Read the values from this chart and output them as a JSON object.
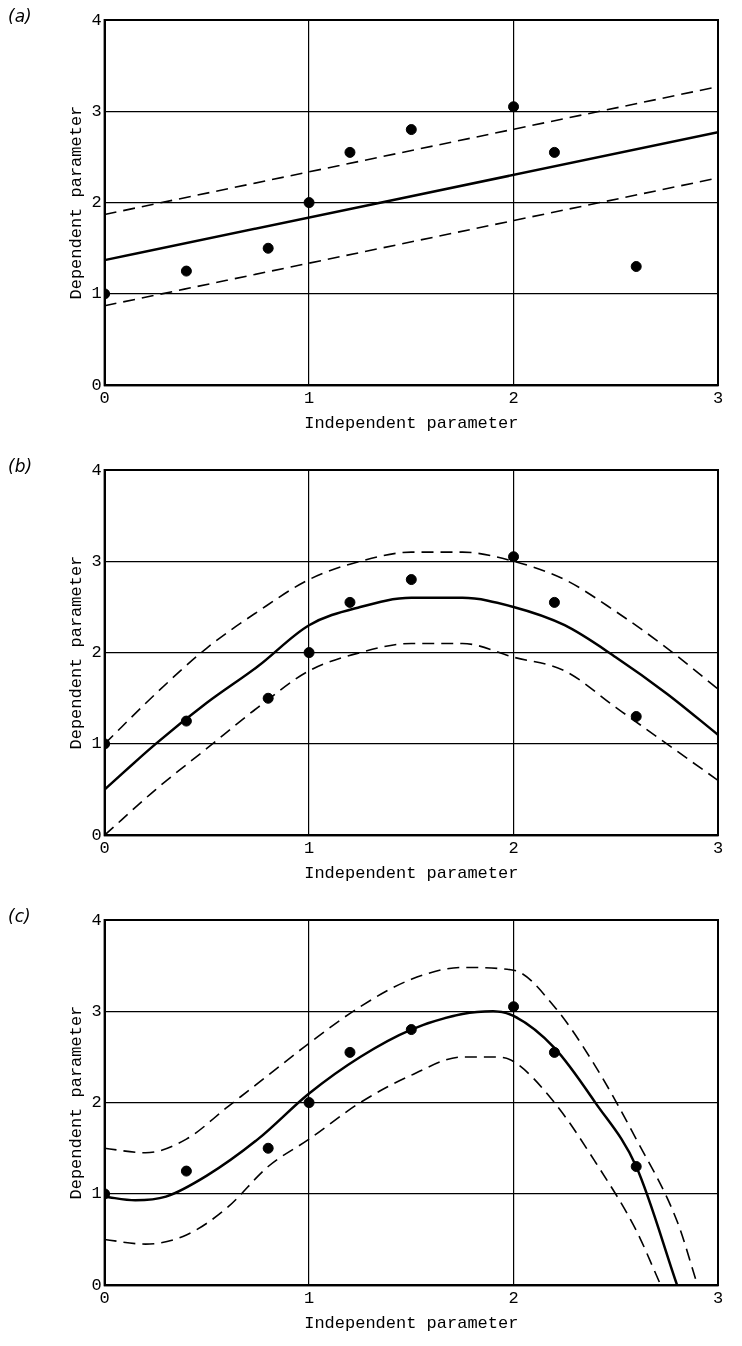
{
  "chart_data": [
    {
      "type": "scatter",
      "title": "(a)",
      "xlabel": "Independent parameter",
      "ylabel": "Dependent parameter",
      "xlim": [
        0,
        3
      ],
      "ylim": [
        0,
        4
      ],
      "xticks": [
        0,
        1,
        2,
        3
      ],
      "yticks": [
        0,
        1,
        2,
        3,
        4
      ],
      "grid": true,
      "series": [
        {
          "color": "#000000",
          "marker": "circle",
          "x": [
            0,
            0.4,
            0.8,
            1,
            1.2,
            1.5,
            2,
            2.2,
            2.6
          ],
          "values": [
            1,
            1.25,
            1.5,
            2,
            2.55,
            2.8,
            3.05,
            2.55,
            1.3
          ]
        },
        {
          "type": "line",
          "color": "#000000",
          "marker": "none",
          "line_style": "solid",
          "x": [
            0,
            3
          ],
          "values": [
            1.37,
            2.77
          ]
        },
        {
          "type": "line",
          "color": "#000000",
          "marker": "none",
          "line_style": "dashed",
          "x": [
            0,
            3
          ],
          "values": [
            1.87,
            3.27
          ]
        },
        {
          "type": "line",
          "color": "#000000",
          "marker": "none",
          "line_style": "dashed",
          "x": [
            0,
            3
          ],
          "values": [
            0.87,
            2.27
          ]
        }
      ]
    },
    {
      "type": "scatter",
      "title": "(b)",
      "xlabel": "Independent parameter",
      "ylabel": "Dependent parameter",
      "xlim": [
        0,
        3
      ],
      "ylim": [
        0,
        4
      ],
      "xticks": [
        0,
        1,
        2,
        3
      ],
      "yticks": [
        0,
        1,
        2,
        3,
        4
      ],
      "grid": true,
      "series": [
        {
          "color": "#000000",
          "marker": "circle",
          "x": [
            0,
            0.4,
            0.8,
            1,
            1.2,
            1.5,
            2,
            2.2,
            2.6
          ],
          "values": [
            1,
            1.25,
            1.5,
            2,
            2.55,
            2.8,
            3.05,
            2.55,
            1.3
          ]
        },
        {
          "type": "line",
          "color": "#000000",
          "marker": "none",
          "line_style": "solid",
          "x": [
            0,
            0.25,
            0.5,
            0.75,
            1,
            1.25,
            1.5,
            1.75,
            2,
            2.25,
            2.5,
            2.75,
            3
          ],
          "values": [
            0.5,
            1.0,
            1.45,
            1.85,
            2.3,
            2.5,
            2.6,
            2.6,
            2.5,
            2.3,
            1.95,
            1.55,
            1.1
          ]
        },
        {
          "type": "line",
          "color": "#000000",
          "marker": "none",
          "line_style": "dashed",
          "x": [
            0,
            0.25,
            0.5,
            0.75,
            1,
            1.25,
            1.5,
            1.75,
            2,
            2.25,
            2.5,
            2.75,
            3
          ],
          "values": [
            1.0,
            1.55,
            2.05,
            2.45,
            2.8,
            3.0,
            3.1,
            3.1,
            3.0,
            2.8,
            2.45,
            2.05,
            1.6
          ]
        },
        {
          "type": "line",
          "color": "#000000",
          "marker": "none",
          "line_style": "dashed",
          "x": [
            0,
            0.25,
            0.5,
            0.75,
            1,
            1.25,
            1.5,
            1.75,
            2,
            2.25,
            2.5,
            2.75,
            3
          ],
          "values": [
            0.0,
            0.5,
            0.95,
            1.4,
            1.8,
            2.0,
            2.1,
            2.1,
            1.95,
            1.8,
            1.4,
            1.0,
            0.6
          ]
        }
      ]
    },
    {
      "type": "scatter",
      "title": "(c)",
      "xlabel": "Independent parameter",
      "ylabel": "Dependent parameter",
      "xlim": [
        0,
        3
      ],
      "ylim": [
        0,
        4
      ],
      "xticks": [
        0,
        1,
        2,
        3
      ],
      "yticks": [
        0,
        1,
        2,
        3,
        4
      ],
      "grid": true,
      "series": [
        {
          "color": "#000000",
          "marker": "circle",
          "x": [
            0,
            0.4,
            0.8,
            1,
            1.2,
            1.5,
            2,
            2.2,
            2.6
          ],
          "values": [
            1,
            1.25,
            1.5,
            2,
            2.55,
            2.8,
            3.05,
            2.55,
            1.3
          ]
        },
        {
          "type": "line",
          "color": "#000000",
          "marker": "none",
          "line_style": "solid",
          "x": [
            0,
            0.15,
            0.3,
            0.5,
            0.75,
            1,
            1.25,
            1.5,
            1.75,
            1.9,
            2,
            2.2,
            2.4,
            2.6,
            2.8
          ],
          "values": [
            0.97,
            0.93,
            0.97,
            1.2,
            1.6,
            2.1,
            2.5,
            2.8,
            2.97,
            3.0,
            2.95,
            2.6,
            2.0,
            1.3,
            0
          ]
        },
        {
          "type": "line",
          "color": "#000000",
          "marker": "none",
          "line_style": "dashed",
          "x": [
            0,
            0.2,
            0.4,
            0.6,
            0.8,
            1,
            1.25,
            1.5,
            1.75,
            2,
            2.2,
            2.4,
            2.6,
            2.8,
            2.9
          ],
          "values": [
            1.5,
            1.45,
            1.6,
            1.95,
            2.3,
            2.65,
            3.05,
            3.35,
            3.48,
            3.45,
            3.05,
            2.4,
            1.6,
            0.7,
            0
          ]
        },
        {
          "type": "line",
          "color": "#000000",
          "marker": "none",
          "line_style": "dashed",
          "x": [
            0,
            0.2,
            0.4,
            0.6,
            0.8,
            1,
            1.25,
            1.5,
            1.75,
            1.9,
            2,
            2.2,
            2.4,
            2.6,
            2.72
          ],
          "values": [
            0.5,
            0.45,
            0.55,
            0.85,
            1.3,
            1.6,
            2.0,
            2.3,
            2.5,
            2.5,
            2.45,
            2.0,
            1.35,
            0.6,
            0
          ]
        }
      ]
    }
  ]
}
